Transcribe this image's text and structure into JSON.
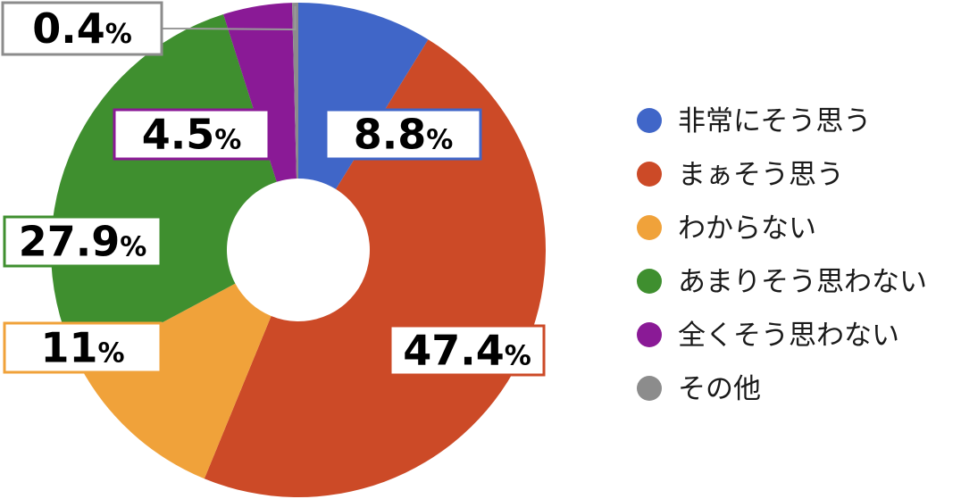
{
  "chart_data": {
    "type": "pie",
    "categories": [
      "非常にそう思う",
      "まぁそう思う",
      "わからない",
      "あまりそう思わない",
      "全くそう思わない",
      "その他"
    ],
    "values": [
      8.8,
      47.4,
      11,
      27.9,
      4.5,
      0.4
    ],
    "value_labels": [
      "8.8",
      "47.4",
      "11",
      "27.9",
      "4.5",
      "0.4"
    ],
    "unit": "%",
    "colors": [
      "#4066c8",
      "#cc4a27",
      "#f0a23a",
      "#3f8f2f",
      "#8a1a96",
      "#8c8c8c"
    ],
    "legend_position": "right"
  }
}
